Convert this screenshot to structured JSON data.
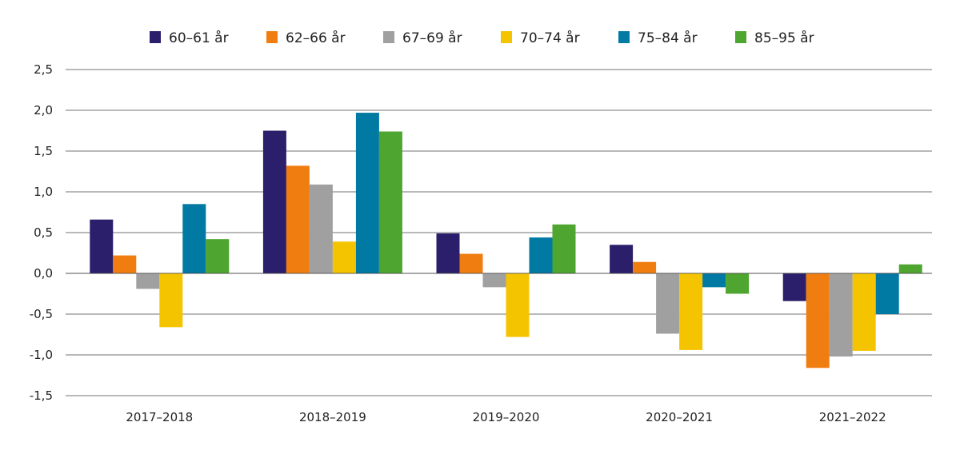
{
  "chart_data": {
    "type": "bar",
    "title": "",
    "xlabel": "",
    "ylabel": "",
    "categories": [
      "2017–2018",
      "2018–2019",
      "2019–2020",
      "2020–2021",
      "2021–2022"
    ],
    "series": [
      {
        "name": "60–61 år",
        "color": "#2b1f6b",
        "values": [
          0.66,
          1.75,
          0.49,
          0.35,
          -0.34
        ]
      },
      {
        "name": "62–66 år",
        "color": "#f07d10",
        "values": [
          0.22,
          1.32,
          0.24,
          0.14,
          -1.16
        ]
      },
      {
        "name": "67–69 år",
        "color": "#a0a0a0",
        "values": [
          -0.19,
          1.09,
          -0.17,
          -0.74,
          -1.02
        ]
      },
      {
        "name": "70–74 år",
        "color": "#f5c400",
        "values": [
          -0.66,
          0.39,
          -0.78,
          -0.94,
          -0.95
        ]
      },
      {
        "name": "75–84 år",
        "color": "#0079a3",
        "values": [
          0.85,
          1.97,
          0.44,
          -0.17,
          -0.5
        ]
      },
      {
        "name": "85–95 år",
        "color": "#4ea52f",
        "values": [
          0.42,
          1.74,
          0.6,
          -0.25,
          0.11
        ]
      }
    ],
    "ylim": [
      -1.5,
      2.5
    ],
    "yticks": [
      "2,5",
      "2,0",
      "1,5",
      "1,0",
      "0,5",
      "0,0",
      "-0,5",
      "-1,0",
      "-1,5"
    ],
    "ytick_values": [
      2.5,
      2.0,
      1.5,
      1.0,
      0.5,
      0.0,
      -0.5,
      -1.0,
      -1.5
    ],
    "grid": true,
    "legend_position": "top"
  }
}
